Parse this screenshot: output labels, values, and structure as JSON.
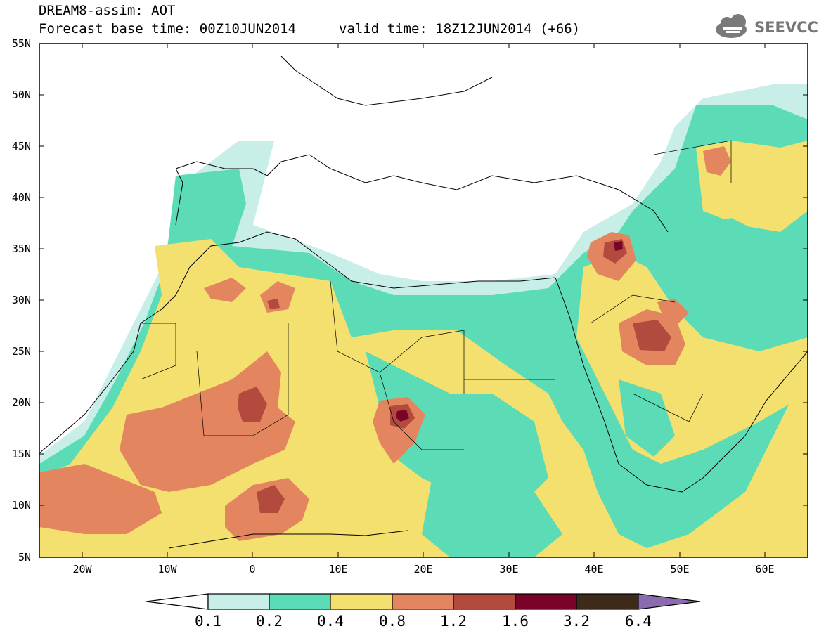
{
  "title": {
    "line1": "DREAM8-assim: AOT",
    "line2": "Forecast base time: 00Z10JUN2014",
    "valid": "valid time: 18Z12JUN2014 (+66)"
  },
  "logo": {
    "text": "SEEVCCC",
    "icon": "cloud-icon"
  },
  "map": {
    "lat_labels": [
      "55N",
      "50N",
      "45N",
      "40N",
      "35N",
      "30N",
      "25N",
      "20N",
      "15N",
      "10N",
      "5N"
    ],
    "lon_labels": [
      "20W",
      "10W",
      "0",
      "10E",
      "20E",
      "30E",
      "40E",
      "50E",
      "60E"
    ],
    "lat_range": [
      5,
      55
    ],
    "lon_range": [
      -25,
      65
    ],
    "field": "Aerosol optical thickness"
  },
  "colorbar": {
    "labels": [
      "0.1",
      "0.2",
      "0.4",
      "0.8",
      "1.2",
      "1.6",
      "3.2",
      "6.4"
    ],
    "colors": [
      "#ffffff",
      "#c8eee8",
      "#5bdcb6",
      "#f3e06e",
      "#e3865f",
      "#b34a3e",
      "#7a0428",
      "#3d2a18",
      "#8a6bb0"
    ]
  }
}
